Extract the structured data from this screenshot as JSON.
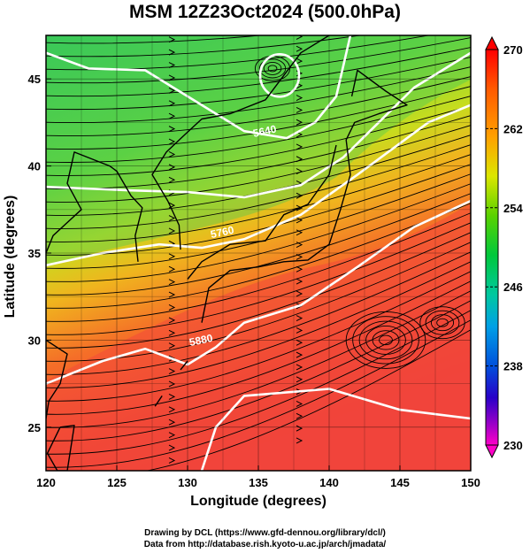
{
  "title": "MSM 12Z23Oct2024 (500.0hPa)",
  "xlabel": "Longitude (degrees)",
  "ylabel": "Latitude  (degrees)",
  "credits": [
    "Drawing by DCL (https://www.gfd-dennou.org/library/dcl/)",
    "Data from http://database.rish.kyoto-u.ac.jp/arch/jmadata/"
  ],
  "map_data": {
    "projection": "equirectangular",
    "lon_range": [
      120,
      150
    ],
    "lat_range": [
      22.5,
      47.5
    ],
    "lon_ticks": [
      "120",
      "125",
      "130",
      "135",
      "140",
      "145",
      "150"
    ],
    "lat_ticks": [
      "25",
      "30",
      "35",
      "40",
      "45"
    ],
    "field": "temperature (shaded) with streamlines",
    "colorbar": {
      "min": 230,
      "max": 270,
      "tick_labels": [
        "270",
        "262",
        "254",
        "246",
        "238",
        "230"
      ],
      "colors": [
        "#ff0000",
        "#ff7a00",
        "#ffd000",
        "#7be000",
        "#00c832",
        "#00c8a0",
        "#0096ff",
        "#0028c8",
        "#8200c8",
        "#ff00c8"
      ]
    },
    "contour_labels": [
      {
        "text": "5640",
        "lon": 135.5,
        "lat": 41.8
      },
      {
        "text": "5760",
        "lon": 132.5,
        "lat": 36.0
      },
      {
        "text": "5880",
        "lon": 131.0,
        "lat": 29.8
      }
    ],
    "colors": {
      "warm": "#f24a3a",
      "cool": "#2fc85a",
      "contour": "#ffffff",
      "coastline": "#000000"
    }
  }
}
